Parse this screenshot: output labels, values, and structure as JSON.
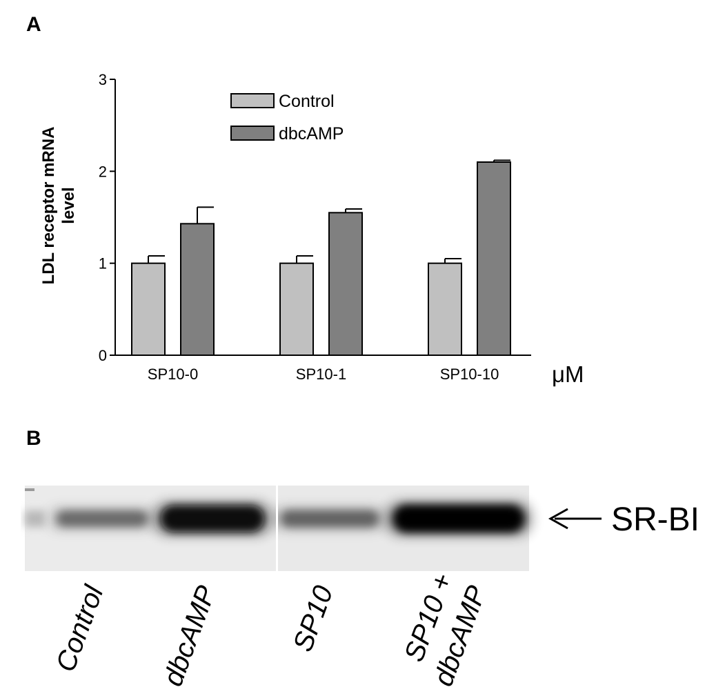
{
  "panel_a": {
    "label": "A",
    "chart_data": {
      "type": "bar",
      "ylabel_line1": "LDL receptor mRNA",
      "ylabel_line2": "level",
      "xunit": "μM",
      "categories": [
        "SP10-0",
        "SP10-1",
        "SP10-10"
      ],
      "series": [
        {
          "name": "Control",
          "values": [
            1.0,
            1.0,
            1.0
          ],
          "errors": [
            0.08,
            0.08,
            0.05
          ],
          "color": "#c0c0c0"
        },
        {
          "name": "dbcAMP",
          "values": [
            1.43,
            1.55,
            2.1
          ],
          "errors": [
            0.18,
            0.04,
            0.02
          ],
          "color": "#808080"
        }
      ],
      "ylim": [
        0,
        3
      ],
      "yticks": [
        0,
        1,
        2,
        3
      ],
      "grid": false,
      "legend_position": "top-left"
    }
  },
  "panel_b": {
    "label": "B",
    "band_label": "SR-BI",
    "lanes": [
      {
        "lines": [
          "Control"
        ],
        "intensity": 0.3
      },
      {
        "lines": [
          "dbcAMP"
        ],
        "intensity": 0.95
      },
      {
        "lines": [
          "SP10"
        ],
        "intensity": 0.35
      },
      {
        "lines": [
          "SP10 +",
          "dbcAMP"
        ],
        "intensity": 1.0
      }
    ]
  }
}
